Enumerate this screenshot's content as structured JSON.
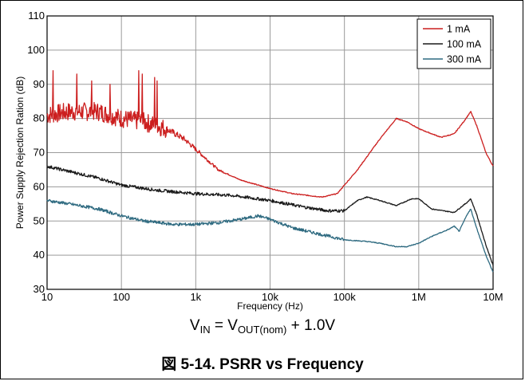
{
  "chart_data": {
    "type": "line",
    "title": "",
    "xlabel": "Frequency (Hz)",
    "ylabel": "Power Supply Rejection Ration (dB)",
    "xscale": "log",
    "xlim": [
      10,
      10000000
    ],
    "ylim": [
      30,
      110
    ],
    "grid": true,
    "legend_position": "top-right",
    "x_tick_labels": [
      "10",
      "100",
      "1k",
      "10k",
      "100k",
      "1M",
      "10M"
    ],
    "x_tick_values": [
      10,
      100,
      1000,
      10000,
      100000,
      1000000,
      10000000
    ],
    "y_tick_values": [
      30,
      40,
      50,
      60,
      70,
      80,
      90,
      100,
      110
    ],
    "y_tick_labels": [
      "30",
      "40",
      "50",
      "60",
      "70",
      "80",
      "90",
      "100",
      "110"
    ],
    "series": [
      {
        "name": "1 mA",
        "color": "#cc1f1f",
        "noisy": true,
        "points": [
          [
            10,
            81
          ],
          [
            20,
            82
          ],
          [
            50,
            82
          ],
          [
            100,
            80
          ],
          [
            200,
            79
          ],
          [
            400,
            77
          ],
          [
            700,
            74
          ],
          [
            1000,
            71
          ],
          [
            2000,
            65
          ],
          [
            4000,
            62
          ],
          [
            10000,
            59.5
          ],
          [
            20000,
            58
          ],
          [
            50000,
            57
          ],
          [
            80000,
            58
          ],
          [
            150000,
            65
          ],
          [
            300000,
            74
          ],
          [
            500000,
            80
          ],
          [
            700000,
            79
          ],
          [
            1000000,
            77
          ],
          [
            1500000,
            75.5
          ],
          [
            2000000,
            74.5
          ],
          [
            3000000,
            75.5
          ],
          [
            4000000,
            79
          ],
          [
            5000000,
            82
          ],
          [
            6000000,
            78
          ],
          [
            8000000,
            70
          ],
          [
            10000000,
            66
          ]
        ],
        "spikes": [
          [
            12,
            94
          ],
          [
            25,
            93
          ],
          [
            40,
            91
          ],
          [
            70,
            90
          ],
          [
            170,
            94
          ],
          [
            190,
            93
          ],
          [
            280,
            92
          ],
          [
            300,
            91
          ]
        ]
      },
      {
        "name": "100 mA",
        "color": "#1a1a1a",
        "noisy": false,
        "points": [
          [
            10,
            66
          ],
          [
            20,
            64.5
          ],
          [
            50,
            62.5
          ],
          [
            100,
            60.5
          ],
          [
            300,
            59
          ],
          [
            1000,
            58
          ],
          [
            3000,
            57.5
          ],
          [
            10000,
            56
          ],
          [
            30000,
            54
          ],
          [
            60000,
            53
          ],
          [
            100000,
            53
          ],
          [
            150000,
            56
          ],
          [
            200000,
            57
          ],
          [
            300000,
            56
          ],
          [
            500000,
            54.5
          ],
          [
            800000,
            56.5
          ],
          [
            1000000,
            56.5
          ],
          [
            1500000,
            53.5
          ],
          [
            3000000,
            52.5
          ],
          [
            4500000,
            55.5
          ],
          [
            5000000,
            56.5
          ],
          [
            6000000,
            52
          ],
          [
            8000000,
            43
          ],
          [
            10000000,
            37
          ]
        ]
      },
      {
        "name": "300 mA",
        "color": "#2e6a80",
        "noisy": false,
        "points": [
          [
            10,
            56
          ],
          [
            20,
            55
          ],
          [
            50,
            53.5
          ],
          [
            100,
            51.5
          ],
          [
            200,
            50
          ],
          [
            500,
            49
          ],
          [
            1000,
            49
          ],
          [
            2000,
            49.5
          ],
          [
            4000,
            50.5
          ],
          [
            7000,
            51.5
          ],
          [
            10000,
            50.5
          ],
          [
            20000,
            48
          ],
          [
            50000,
            46
          ],
          [
            100000,
            44.5
          ],
          [
            200000,
            44
          ],
          [
            300000,
            43.5
          ],
          [
            500000,
            42.5
          ],
          [
            700000,
            42.5
          ],
          [
            1000000,
            43.5
          ],
          [
            1500000,
            45.5
          ],
          [
            2500000,
            47.5
          ],
          [
            3000000,
            48.5
          ],
          [
            3500000,
            47
          ],
          [
            4500000,
            52
          ],
          [
            5000000,
            53.5
          ],
          [
            6000000,
            48
          ],
          [
            8000000,
            40
          ],
          [
            10000000,
            35
          ]
        ]
      }
    ]
  },
  "condition": {
    "v_in": "V",
    "in_sub": "IN",
    "equals": " = V",
    "out_sub": "OUT(nom)",
    "rest": " + 1.0V"
  },
  "caption": "図 5-14. PSRR vs Frequency"
}
